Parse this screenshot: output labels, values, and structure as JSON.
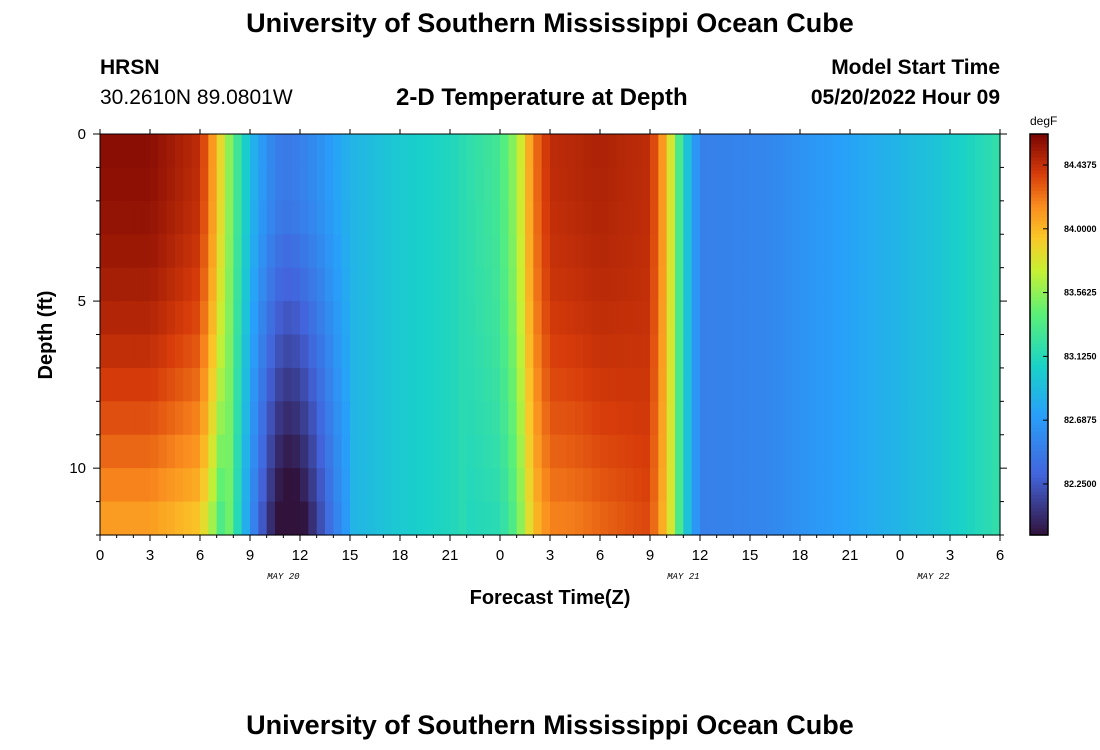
{
  "header": {
    "title": "University of Southern Mississippi Ocean Cube",
    "station": "HRSN",
    "coords": "30.2610N  89.0801W",
    "chart_title": "2-D Temperature at Depth",
    "model_start_label": "Model Start Time",
    "model_start_value": "05/20/2022 Hour 09"
  },
  "footer": {
    "title": "University of Southern Mississippi Ocean Cube"
  },
  "chart_data": {
    "type": "heatmap",
    "title": "2-D Temperature at Depth",
    "xlabel": "Forecast Time(Z)",
    "ylabel": "Depth (ft)",
    "x_range_hours": [
      0,
      54
    ],
    "x_start": "05/20/2022 00Z",
    "x_ticks": [
      "0",
      "3",
      "6",
      "9",
      "12",
      "15",
      "18",
      "21",
      "0",
      "3",
      "6",
      "9",
      "12",
      "15",
      "18",
      "21",
      "0",
      "3",
      "6"
    ],
    "date_labels": [
      {
        "hour": 11,
        "text": "MAY 20"
      },
      {
        "hour": 35,
        "text": "MAY 21"
      },
      {
        "hour": 50,
        "text": "MAY 22"
      }
    ],
    "y_range": [
      0,
      12
    ],
    "y_reversed": true,
    "y_ticks": [
      "0",
      "5",
      "10"
    ],
    "y_tick_values": [
      0,
      5,
      10
    ],
    "colorbar": {
      "units": "degF",
      "min": 81.9,
      "max": 84.65,
      "labels": [
        "84.4375",
        "84.0000",
        "83.5625",
        "83.1250",
        "82.6875",
        "82.2500"
      ],
      "label_values": [
        84.4375,
        84.0,
        83.5625,
        83.125,
        82.6875,
        82.25
      ]
    },
    "surface_profile_hours": [
      0,
      3,
      6,
      7,
      8,
      9,
      10,
      11,
      12,
      13,
      15,
      18,
      21,
      24,
      25,
      26,
      27,
      30,
      33,
      34,
      35,
      36,
      40,
      45,
      50,
      54
    ],
    "surface_profile_degF": [
      84.6,
      84.6,
      84.45,
      84.0,
      83.4,
      82.9,
      82.6,
      82.45,
      82.5,
      82.6,
      82.85,
      83.0,
      83.1,
      83.3,
      83.6,
      84.2,
      84.45,
      84.5,
      84.45,
      84.0,
      83.1,
      82.5,
      82.55,
      82.75,
      82.95,
      83.2
    ],
    "notes": "Temperature decreases with depth around hours 10-14 (minimum ~81.9 degF near bottom) and increases with depth in cold-water bands."
  }
}
